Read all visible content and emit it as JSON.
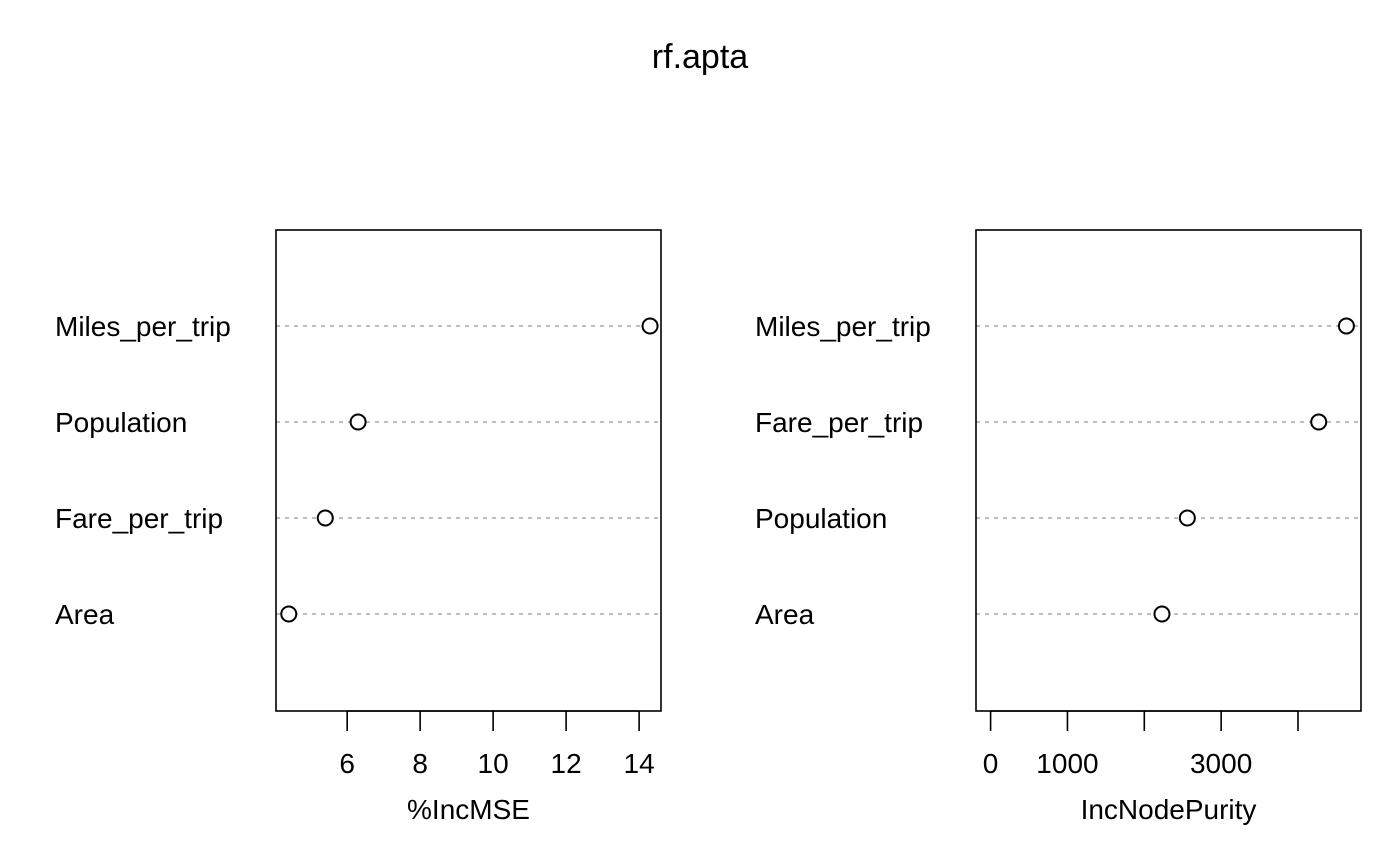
{
  "chart_data": [
    {
      "type": "scatter",
      "subtype": "dotchart",
      "title": "rf.apta",
      "xlabel": "%IncMSE",
      "ylabel": "",
      "categories": [
        "Miles_per_trip",
        "Population",
        "Fare_per_trip",
        "Area"
      ],
      "values": [
        14.3,
        6.3,
        5.4,
        4.4
      ],
      "xlim": [
        4.05,
        14.6
      ],
      "xticks": [
        6,
        8,
        10,
        12,
        14
      ],
      "xtick_labels": [
        "6",
        "8",
        "10",
        "12",
        "14"
      ],
      "grid": "dotted horizontal lines"
    },
    {
      "type": "scatter",
      "subtype": "dotchart",
      "title": "",
      "xlabel": "IncNodePurity",
      "ylabel": "",
      "categories": [
        "Miles_per_trip",
        "Fare_per_trip",
        "Population",
        "Area"
      ],
      "values": [
        4630,
        4270,
        2560,
        2230
      ],
      "xlim": [
        -190,
        4820
      ],
      "xticks": [
        0,
        1000,
        2000,
        3000,
        4000
      ],
      "xtick_labels": [
        "0",
        "1000",
        "",
        "3000",
        ""
      ],
      "grid": "dotted horizontal lines"
    }
  ]
}
